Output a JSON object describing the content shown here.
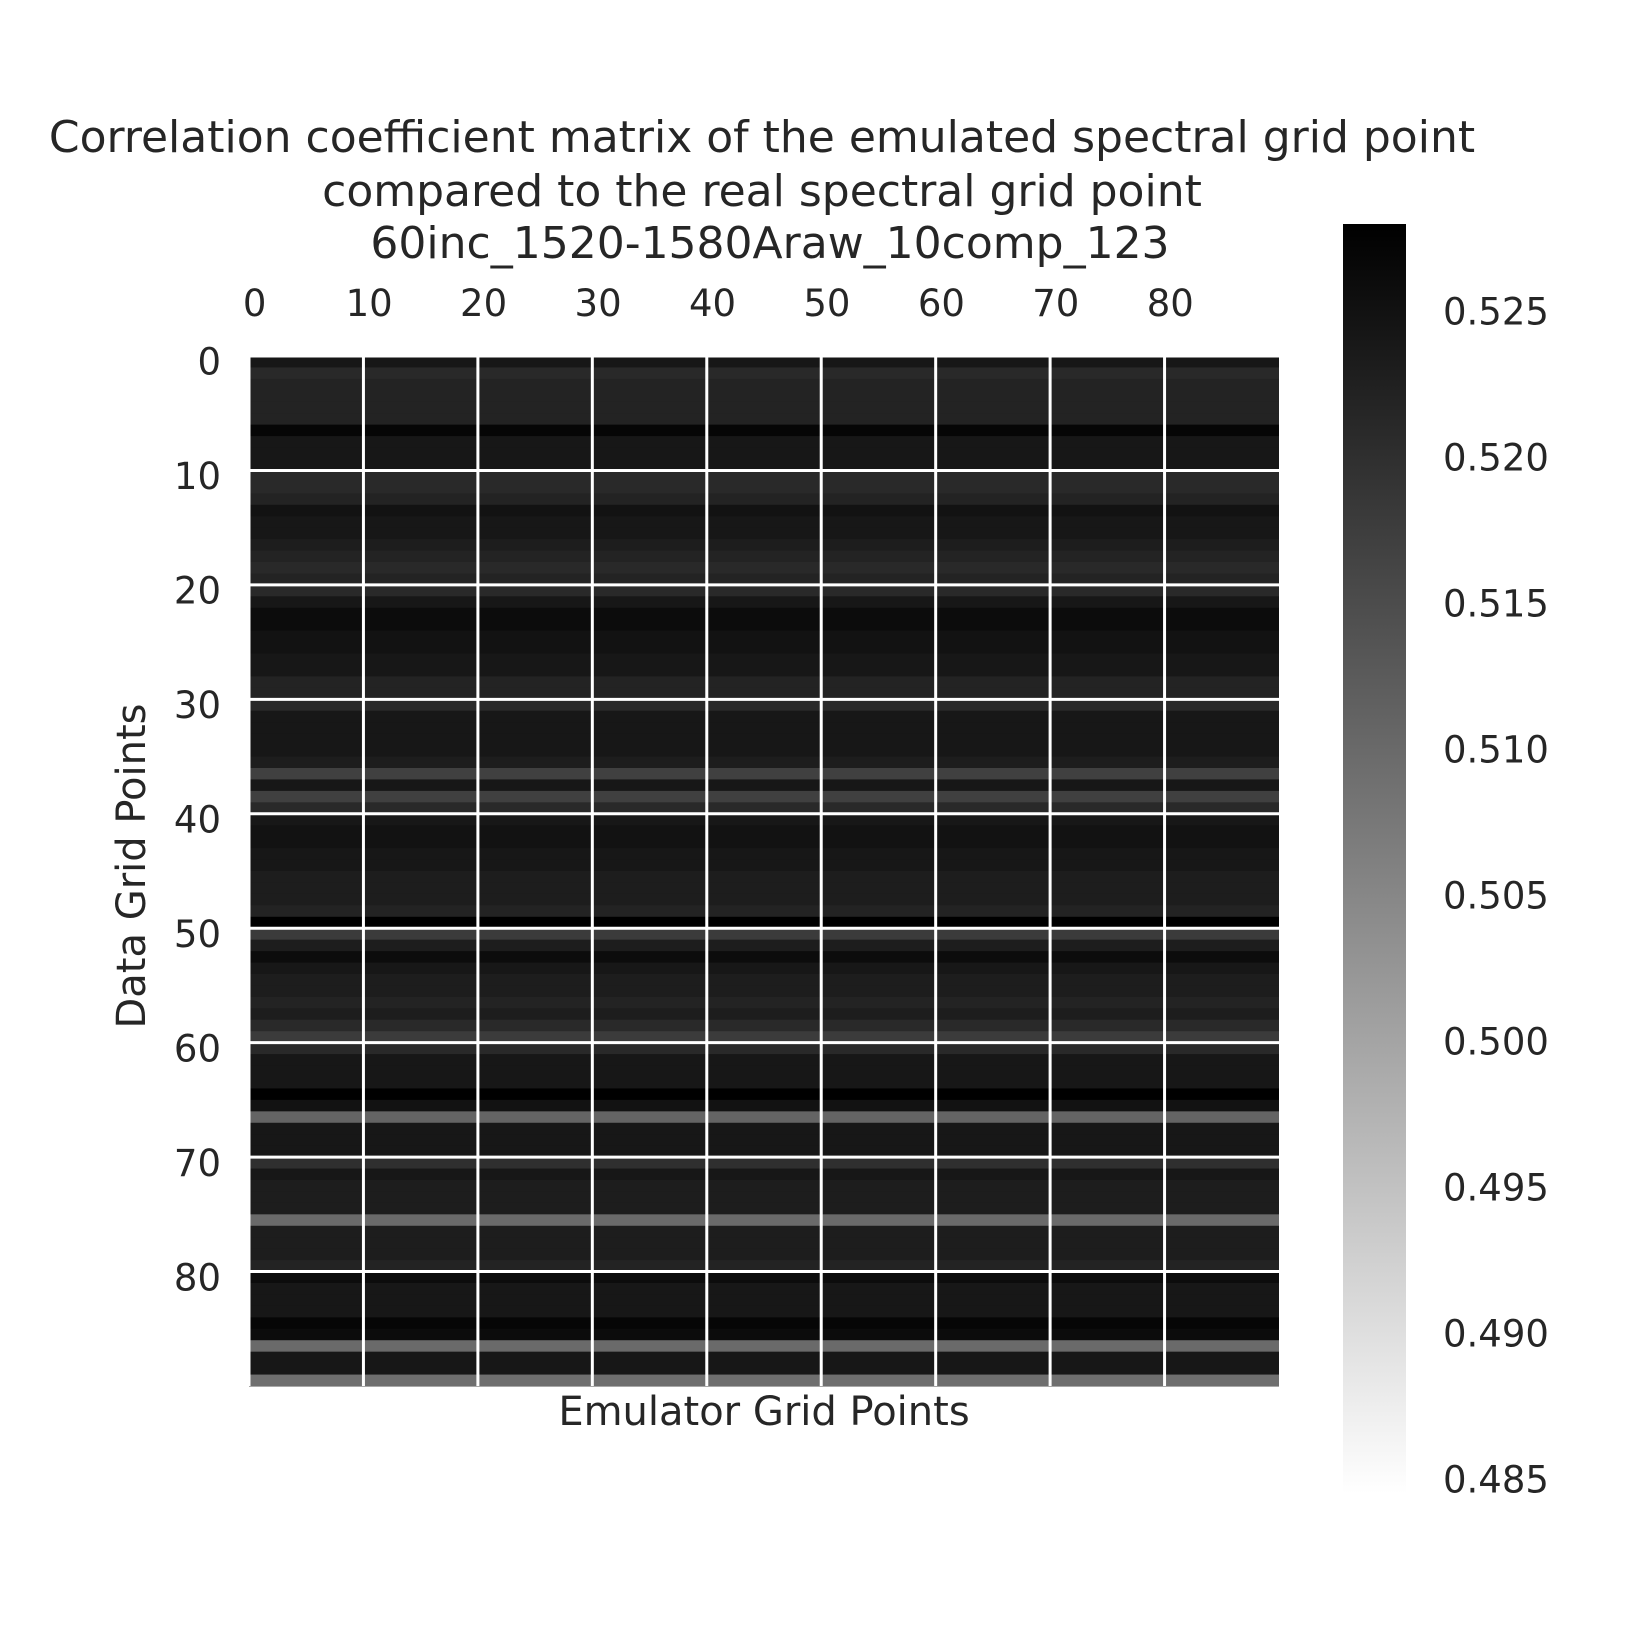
{
  "chart_data": {
    "type": "heatmap",
    "title_lines": [
      "Correlation coefficient matrix of the emulated spectral grid point",
      "compared to the real spectral grid point",
      "60inc_1520-1580Araw_10comp_123"
    ],
    "xlabel": "Emulator Grid Points",
    "ylabel": "Data Grid Points",
    "x_ticks": [
      "0",
      "10",
      "20",
      "30",
      "40",
      "50",
      "60",
      "70",
      "80"
    ],
    "y_ticks": [
      "0",
      "10",
      "20",
      "30",
      "40",
      "50",
      "60",
      "70",
      "80"
    ],
    "n_rows": 90,
    "n_cols": 90,
    "grid": true,
    "colormap": "greys",
    "colorbar": {
      "vmin": 0.4845,
      "vmax": 0.528,
      "ticks": [
        "0.525",
        "0.520",
        "0.515",
        "0.510",
        "0.505",
        "0.500",
        "0.495",
        "0.490",
        "0.485"
      ]
    },
    "row_values": [
      0.524,
      0.521,
      0.522,
      0.522,
      0.522,
      0.522,
      0.527,
      0.524,
      0.524,
      0.524,
      0.521,
      0.521,
      0.522,
      0.525,
      0.524,
      0.524,
      0.523,
      0.522,
      0.521,
      0.522,
      0.521,
      0.524,
      0.526,
      0.526,
      0.525,
      0.525,
      0.524,
      0.524,
      0.522,
      0.522,
      0.521,
      0.524,
      0.524,
      0.524,
      0.524,
      0.523,
      0.517,
      0.524,
      0.517,
      0.521,
      0.524,
      0.525,
      0.525,
      0.524,
      0.524,
      0.523,
      0.523,
      0.523,
      0.522,
      0.528,
      0.518,
      0.523,
      0.526,
      0.524,
      0.523,
      0.523,
      0.522,
      0.523,
      0.521,
      0.518,
      0.521,
      0.524,
      0.524,
      0.524,
      0.528,
      0.525,
      0.511,
      0.524,
      0.524,
      0.524,
      0.52,
      0.524,
      0.523,
      0.523,
      0.523,
      0.51,
      0.523,
      0.523,
      0.523,
      0.522,
      0.526,
      0.524,
      0.524,
      0.524,
      0.527,
      0.526,
      0.51,
      0.524,
      0.524,
      0.509
    ]
  }
}
